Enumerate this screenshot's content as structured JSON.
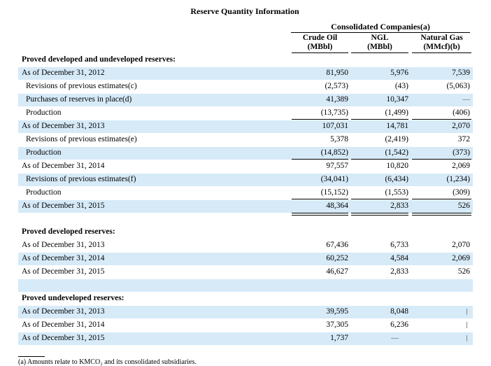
{
  "title": "Reserve Quantity Information",
  "group_header": "Consolidated Companies(a)",
  "columns": [
    {
      "line1": "Crude Oil",
      "line2": "(MBbl)"
    },
    {
      "line1": "NGL",
      "line2": "(MBbl)"
    },
    {
      "line1": "Natural Gas",
      "line2": "(MMcf)(b)"
    }
  ],
  "sections": {
    "proved": {
      "heading": "Proved developed and undeveloped reserves:",
      "rows": [
        {
          "label": "As of December 31, 2012",
          "values": [
            "81,950",
            "5,976",
            "7,539"
          ]
        },
        {
          "label": "Revisions of previous estimates(c)",
          "values": [
            "(2,573)",
            "(43)",
            "(5,063)"
          ]
        },
        {
          "label": "Purchases of reserves in place(d)",
          "values": [
            "41,389",
            "10,347",
            ""
          ]
        },
        {
          "label": "Production",
          "values": [
            "(13,735)",
            "(1,499)",
            "(406)"
          ]
        },
        {
          "label": "As of December 31, 2013",
          "values": [
            "107,031",
            "14,781",
            "2,070"
          ]
        },
        {
          "label": "Revisions of previous estimates(e)",
          "values": [
            "5,378",
            "(2,419)",
            "372"
          ]
        },
        {
          "label": "Production",
          "values": [
            "(14,852)",
            "(1,542)",
            "(373)"
          ]
        },
        {
          "label": "As of December 31, 2014",
          "values": [
            "97,557",
            "10,820",
            "2,069"
          ]
        },
        {
          "label": "Revisions of previous estimates(f)",
          "values": [
            "(34,041)",
            "(6,434)",
            "(1,234)"
          ]
        },
        {
          "label": "Production",
          "values": [
            "(15,152)",
            "(1,553)",
            "(309)"
          ]
        },
        {
          "label": "As of December 31, 2015",
          "values": [
            "48,364",
            "2,833",
            "526"
          ]
        }
      ]
    },
    "developed": {
      "heading": "Proved developed reserves:",
      "rows": [
        {
          "label": "As of December 31, 2013",
          "values": [
            "67,436",
            "6,733",
            "2,070"
          ]
        },
        {
          "label": "As of December 31, 2014",
          "values": [
            "60,252",
            "4,584",
            "2,069"
          ]
        },
        {
          "label": "As of December 31, 2015",
          "values": [
            "46,627",
            "2,833",
            "526"
          ]
        }
      ]
    },
    "undeveloped": {
      "heading": "Proved undeveloped reserves:",
      "rows": [
        {
          "label": "As of December 31, 2013",
          "values": [
            "39,595",
            "8,048",
            ""
          ]
        },
        {
          "label": "As of December 31, 2014",
          "values": [
            "37,305",
            "6,236",
            ""
          ]
        },
        {
          "label": "As of December 31, 2015",
          "values": [
            "1,737",
            "",
            ""
          ]
        }
      ]
    }
  },
  "footnote": "(a)   Amounts relate to KMCO₂ and its consolidated subsidiaries."
}
